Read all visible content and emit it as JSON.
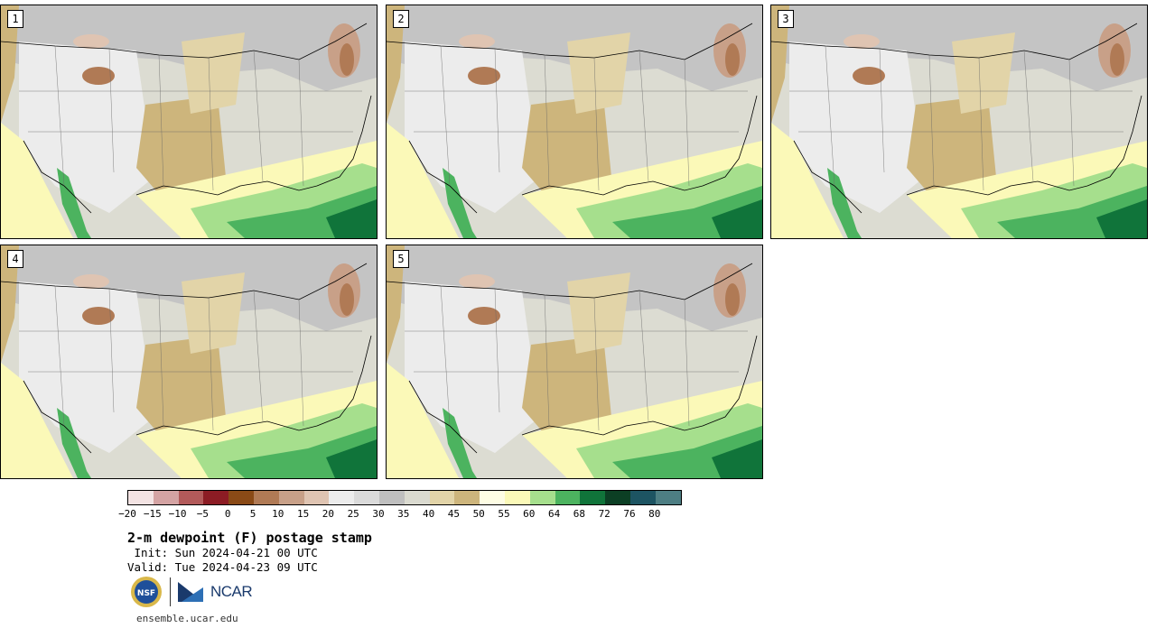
{
  "panels": [
    {
      "label": "1"
    },
    {
      "label": "2"
    },
    {
      "label": "3"
    },
    {
      "label": "4"
    },
    {
      "label": "5"
    }
  ],
  "colorbar": {
    "colors": [
      "#f3e3e3",
      "#d4a3a3",
      "#b25a5a",
      "#8c1c24",
      "#8a4a16",
      "#b07a55",
      "#c8a088",
      "#dfc4b2",
      "#ececec",
      "#dadada",
      "#bfbfbf",
      "#dadad0",
      "#e2d4a8",
      "#cdb57c",
      "#fefde4",
      "#fbf9b8",
      "#a6df8d",
      "#4cb35f",
      "#10743a",
      "#0c3f24",
      "#1d5462",
      "#4d7e83"
    ],
    "tick_labels": [
      "−20",
      "−15",
      "−10",
      "−5",
      "0",
      "5",
      "10",
      "15",
      "20",
      "25",
      "30",
      "35",
      "40",
      "45",
      "50",
      "55",
      "60",
      "64",
      "68",
      "72",
      "76",
      "80"
    ]
  },
  "title": "2-m dewpoint (F) postage stamp",
  "init": " Init: Sun 2024-04-21 00 UTC",
  "valid": "Valid: Tue 2024-04-23 09 UTC",
  "logos": {
    "nsf": "NSF",
    "ncar": "NCAR"
  },
  "url": "ensemble.ucar.edu"
}
